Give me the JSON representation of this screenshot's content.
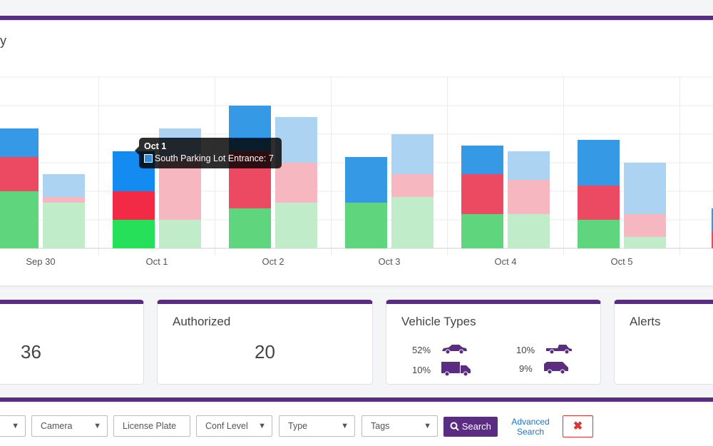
{
  "chart_title": "y",
  "chart_data": {
    "type": "bar",
    "stacked": true,
    "categories": [
      "Sep 30",
      "Oct 1",
      "Oct 2",
      "Oct 3",
      "Oct 4",
      "Oct 5"
    ],
    "ylim": [
      0,
      30
    ],
    "grid": true,
    "series_groups": [
      {
        "group": "current",
        "colors": {
          "bottom": "#5fd67d",
          "middle": "#ec4a63",
          "top": "#3599e6"
        },
        "stacks": [
          [
            10,
            6,
            5
          ],
          [
            5,
            5,
            7
          ],
          [
            7,
            10,
            8
          ],
          [
            8,
            0,
            8
          ],
          [
            6,
            7,
            5
          ],
          [
            5,
            6,
            8
          ]
        ]
      },
      {
        "group": "comparison",
        "colors": {
          "bottom": "#c0ecc9",
          "middle": "#f6b7c1",
          "top": "#add3f3"
        },
        "stacks": [
          [
            8,
            1,
            4
          ],
          [
            5,
            11,
            5
          ],
          [
            8,
            7,
            8
          ],
          [
            9,
            4,
            7
          ],
          [
            6,
            6,
            5
          ],
          [
            2,
            4,
            9
          ]
        ]
      }
    ],
    "partial_last": {
      "current": [
        0,
        3,
        4
      ]
    }
  },
  "tooltip": {
    "title": "Oct 1",
    "label": "South Parking Lot Entrance: 7",
    "swatch_color": "#2f8ee0"
  },
  "cards": {
    "total": {
      "label": "",
      "value": "36"
    },
    "authorized": {
      "label": "Authorized",
      "value": "20"
    },
    "vehicle_types": {
      "label": "Vehicle Types",
      "items": [
        {
          "pct": "52%",
          "icon": "car-icon"
        },
        {
          "pct": "10%",
          "icon": "pickup-truck-icon"
        },
        {
          "pct": "10%",
          "icon": "box-truck-icon"
        },
        {
          "pct": "9%",
          "icon": "van-icon"
        }
      ]
    },
    "alerts": {
      "label": "Alerts"
    }
  },
  "filters": {
    "camera": "Camera",
    "license_plate": "License Plate",
    "conf_level": "Conf Level",
    "type": "Type",
    "tags": "Tags",
    "search": "Search",
    "advanced_search": "Advanced Search",
    "clear_icon": "close-icon"
  },
  "colors": {
    "accent": "#5b2d82",
    "link": "#1a73c8",
    "danger": "#d33333"
  }
}
